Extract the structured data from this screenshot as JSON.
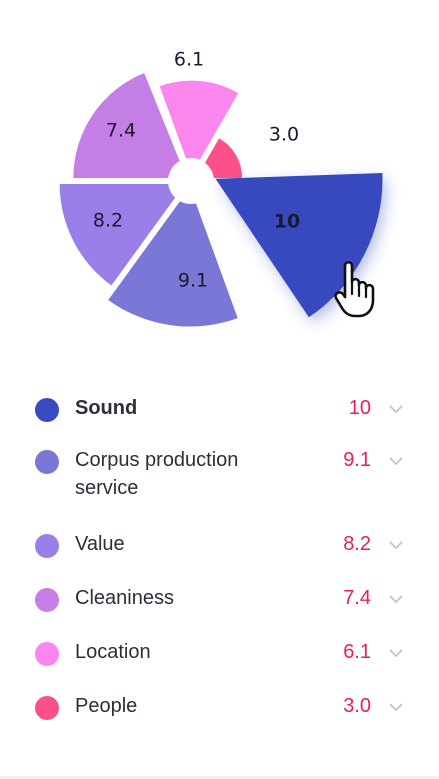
{
  "chart_data": {
    "type": "polar-area",
    "series": [
      {
        "label": "Sound",
        "value": 10,
        "display": "10",
        "color": "#3949c0",
        "active": true
      },
      {
        "label": "Corpus production service",
        "value": 9.1,
        "display": "9.1",
        "color": "#7b77d6",
        "active": false
      },
      {
        "label": "Value",
        "value": 8.2,
        "display": "8.2",
        "color": "#9b7fe8",
        "active": false
      },
      {
        "label": "Cleaniness",
        "value": 7.4,
        "display": "7.4",
        "color": "#c47ee6",
        "active": false
      },
      {
        "label": "Location",
        "value": 6.1,
        "display": "6.1",
        "color": "#fb86ee",
        "active": false
      },
      {
        "label": "People",
        "value": 3.0,
        "display": "3.0",
        "color": "#fb5188",
        "active": false
      }
    ]
  },
  "legend": {
    "items": [
      {
        "label": "Sound",
        "value": "10",
        "color": "#3949c0"
      },
      {
        "label": "Corpus production\nservice",
        "value": "9.1",
        "color": "#7b77d6"
      },
      {
        "label": "Value",
        "value": "8.2",
        "color": "#9b7fe8"
      },
      {
        "label": "Cleaniness",
        "value": "7.4",
        "color": "#c47ee6"
      },
      {
        "label": "Location",
        "value": "6.1",
        "color": "#fb86ee"
      },
      {
        "label": "People",
        "value": "3.0",
        "color": "#fb5188"
      }
    ]
  },
  "icons": {
    "pointer": "hand-pointer-icon",
    "expand": "chevron-down-icon"
  }
}
